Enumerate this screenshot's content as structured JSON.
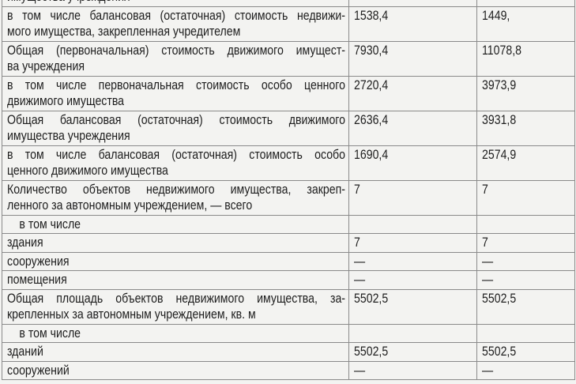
{
  "table": {
    "rows": [
      {
        "label": [
          "имущества учреждения"
        ],
        "v1": "",
        "v2": ""
      },
      {
        "label": [
          "в том числе балансовая (остаточная) стоимость недвижи-",
          "мого имущества, закрепленная учредителем"
        ],
        "v1": "1538,4",
        "v2": "1449,"
      },
      {
        "label": [
          "Общая (первоначальная) стоимость движимого имущест-",
          "ва учреждения"
        ],
        "v1": "7930,4",
        "v2": "11078,8"
      },
      {
        "label": [
          "в том числе первоначальная стоимость особо ценного",
          "движимого имущества"
        ],
        "v1": "2720,4",
        "v2": "3973,9"
      },
      {
        "label": [
          "Общая балансовая (остаточная) стоимость движимого",
          "имущества учреждения"
        ],
        "v1": "2636,4",
        "v2": "3931,8"
      },
      {
        "label": [
          "в том числе балансовая (остаточная) стоимость особо",
          "ценного движимого имущества"
        ],
        "v1": "1690,4",
        "v2": "2574,9"
      },
      {
        "label": [
          "Количество объектов недвижимого имущества, закреп-",
          "ленного за автономным учреждением, — всего"
        ],
        "v1": "7",
        "v2": "7"
      },
      {
        "label": [
          "в том числе"
        ],
        "indent": true,
        "v1": "",
        "v2": ""
      },
      {
        "label": [
          "здания"
        ],
        "v1": "7",
        "v2": "7"
      },
      {
        "label": [
          "сооружения"
        ],
        "v1": "—",
        "v2": "—"
      },
      {
        "label": [
          "помещения"
        ],
        "v1": "—",
        "v2": "—"
      },
      {
        "label": [
          "Общая площадь объектов недвижимого имущества, за-",
          "крепленных за автономным учреждением, кв. м"
        ],
        "v1": "5502,5",
        "v2": "5502,5"
      },
      {
        "label": [
          "в том числе"
        ],
        "indent": true,
        "v1": "",
        "v2": ""
      },
      {
        "label": [
          "зданий"
        ],
        "v1": "5502,5",
        "v2": "5502,5"
      },
      {
        "label": [
          "сооружений"
        ],
        "v1": "—",
        "v2": "—"
      }
    ]
  }
}
